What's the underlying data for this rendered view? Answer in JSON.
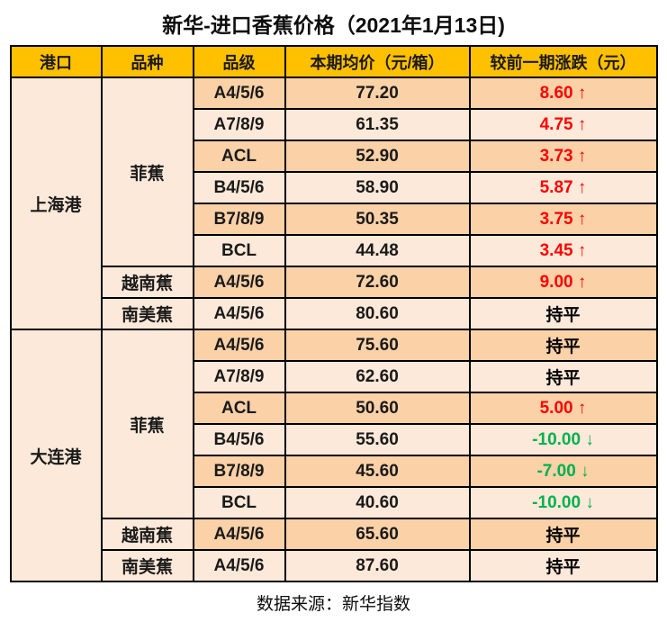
{
  "title": "新华-进口香蕉价格（2021年1月13日)",
  "source": "数据来源：新华指数",
  "columns": [
    "港口",
    "品种",
    "品级",
    "本期均价（元/箱）",
    "较前一期涨跌（元）"
  ],
  "colors": {
    "header_bg": "#FFC000",
    "row_dark": "#FBD1A8",
    "row_light": "#FDE9D9",
    "border": "#000000",
    "up": "#FF0000",
    "down": "#00B050",
    "flat": "#000000"
  },
  "rows": [
    {
      "port": "上海港",
      "port_span": 8,
      "variety": "菲蕉",
      "variety_span": 6,
      "grade": "A4/5/6",
      "price": "77.20",
      "change": "8.60 ↑",
      "trend": "up",
      "shade": "dark"
    },
    {
      "grade": "A7/8/9",
      "price": "61.35",
      "change": "4.75 ↑",
      "trend": "up",
      "shade": "light"
    },
    {
      "grade": "ACL",
      "price": "52.90",
      "change": "3.73 ↑",
      "trend": "up",
      "shade": "dark"
    },
    {
      "grade": "B4/5/6",
      "price": "58.90",
      "change": "5.87 ↑",
      "trend": "up",
      "shade": "light"
    },
    {
      "grade": "B7/8/9",
      "price": "50.35",
      "change": "3.75 ↑",
      "trend": "up",
      "shade": "dark"
    },
    {
      "grade": "BCL",
      "price": "44.48",
      "change": "3.45 ↑",
      "trend": "up",
      "shade": "light"
    },
    {
      "variety": "越南蕉",
      "variety_span": 1,
      "grade": "A4/5/6",
      "price": "72.60",
      "change": "9.00 ↑",
      "trend": "up",
      "shade": "dark"
    },
    {
      "variety": "南美蕉",
      "variety_span": 1,
      "grade": "A4/5/6",
      "price": "80.60",
      "change": "持平",
      "trend": "flat",
      "shade": "light"
    },
    {
      "port": "大连港",
      "port_span": 8,
      "variety": "菲蕉",
      "variety_span": 6,
      "grade": "A4/5/6",
      "price": "75.60",
      "change": "持平",
      "trend": "flat",
      "shade": "dark"
    },
    {
      "grade": "A7/8/9",
      "price": "62.60",
      "change": "持平",
      "trend": "flat",
      "shade": "light"
    },
    {
      "grade": "ACL",
      "price": "50.60",
      "change": "5.00 ↑",
      "trend": "up",
      "shade": "dark"
    },
    {
      "grade": "B4/5/6",
      "price": "55.60",
      "change": "-10.00 ↓",
      "trend": "down",
      "shade": "light"
    },
    {
      "grade": "B7/8/9",
      "price": "45.60",
      "change": "-7.00 ↓",
      "trend": "down",
      "shade": "dark"
    },
    {
      "grade": "BCL",
      "price": "40.60",
      "change": "-10.00 ↓",
      "trend": "down",
      "shade": "light"
    },
    {
      "variety": "越南蕉",
      "variety_span": 1,
      "grade": "A4/5/6",
      "price": "65.60",
      "change": "持平",
      "trend": "flat",
      "shade": "dark"
    },
    {
      "variety": "南美蕉",
      "variety_span": 1,
      "grade": "A4/5/6",
      "price": "87.60",
      "change": "持平",
      "trend": "flat",
      "shade": "light"
    }
  ],
  "chart_data": {
    "type": "table",
    "title": "新华-进口香蕉价格（2021年1月13日)",
    "columns": [
      "港口",
      "品种",
      "品级",
      "本期均价（元/箱）",
      "较前一期涨跌（元）"
    ],
    "rows": [
      [
        "上海港",
        "菲蕉",
        "A4/5/6",
        77.2,
        "8.60 ↑"
      ],
      [
        "上海港",
        "菲蕉",
        "A7/8/9",
        61.35,
        "4.75 ↑"
      ],
      [
        "上海港",
        "菲蕉",
        "ACL",
        52.9,
        "3.73 ↑"
      ],
      [
        "上海港",
        "菲蕉",
        "B4/5/6",
        58.9,
        "5.87 ↑"
      ],
      [
        "上海港",
        "菲蕉",
        "B7/8/9",
        50.35,
        "3.75 ↑"
      ],
      [
        "上海港",
        "菲蕉",
        "BCL",
        44.48,
        "3.45 ↑"
      ],
      [
        "上海港",
        "越南蕉",
        "A4/5/6",
        72.6,
        "9.00 ↑"
      ],
      [
        "上海港",
        "南美蕉",
        "A4/5/6",
        80.6,
        "持平"
      ],
      [
        "大连港",
        "菲蕉",
        "A4/5/6",
        75.6,
        "持平"
      ],
      [
        "大连港",
        "菲蕉",
        "A7/8/9",
        62.6,
        "持平"
      ],
      [
        "大连港",
        "菲蕉",
        "ACL",
        50.6,
        "5.00 ↑"
      ],
      [
        "大连港",
        "菲蕉",
        "B4/5/6",
        55.6,
        "-10.00 ↓"
      ],
      [
        "大连港",
        "菲蕉",
        "B7/8/9",
        45.6,
        "-7.00 ↓"
      ],
      [
        "大连港",
        "菲蕉",
        "BCL",
        40.6,
        "-10.00 ↓"
      ],
      [
        "大连港",
        "越南蕉",
        "A4/5/6",
        65.6,
        "持平"
      ],
      [
        "大连港",
        "南美蕉",
        "A4/5/6",
        87.6,
        "持平"
      ]
    ],
    "source": "数据来源：新华指数"
  }
}
